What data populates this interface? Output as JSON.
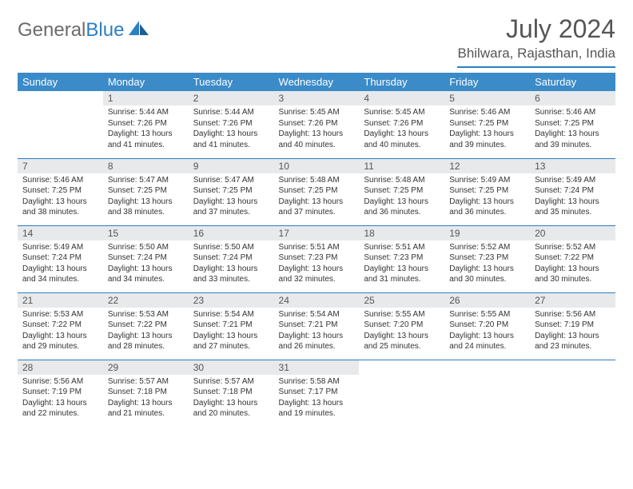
{
  "logo": {
    "textGray": "General",
    "textBlue": "Blue"
  },
  "title": {
    "month": "July 2024",
    "location": "Bhilwara, Rajasthan, India"
  },
  "weekdays": [
    "Sunday",
    "Monday",
    "Tuesday",
    "Wednesday",
    "Thursday",
    "Friday",
    "Saturday"
  ],
  "colors": {
    "headerBg": "#3b8bc9",
    "accent": "#2b7fc4",
    "dayNumBg": "#e8e9ea",
    "text": "#333333",
    "muted": "#555555"
  },
  "grid": {
    "startWeekday": 1,
    "daysInMonth": 31
  },
  "days": {
    "1": {
      "sunrise": "5:44 AM",
      "sunset": "7:26 PM",
      "daylight": "13 hours and 41 minutes."
    },
    "2": {
      "sunrise": "5:44 AM",
      "sunset": "7:26 PM",
      "daylight": "13 hours and 41 minutes."
    },
    "3": {
      "sunrise": "5:45 AM",
      "sunset": "7:26 PM",
      "daylight": "13 hours and 40 minutes."
    },
    "4": {
      "sunrise": "5:45 AM",
      "sunset": "7:26 PM",
      "daylight": "13 hours and 40 minutes."
    },
    "5": {
      "sunrise": "5:46 AM",
      "sunset": "7:25 PM",
      "daylight": "13 hours and 39 minutes."
    },
    "6": {
      "sunrise": "5:46 AM",
      "sunset": "7:25 PM",
      "daylight": "13 hours and 39 minutes."
    },
    "7": {
      "sunrise": "5:46 AM",
      "sunset": "7:25 PM",
      "daylight": "13 hours and 38 minutes."
    },
    "8": {
      "sunrise": "5:47 AM",
      "sunset": "7:25 PM",
      "daylight": "13 hours and 38 minutes."
    },
    "9": {
      "sunrise": "5:47 AM",
      "sunset": "7:25 PM",
      "daylight": "13 hours and 37 minutes."
    },
    "10": {
      "sunrise": "5:48 AM",
      "sunset": "7:25 PM",
      "daylight": "13 hours and 37 minutes."
    },
    "11": {
      "sunrise": "5:48 AM",
      "sunset": "7:25 PM",
      "daylight": "13 hours and 36 minutes."
    },
    "12": {
      "sunrise": "5:49 AM",
      "sunset": "7:25 PM",
      "daylight": "13 hours and 36 minutes."
    },
    "13": {
      "sunrise": "5:49 AM",
      "sunset": "7:24 PM",
      "daylight": "13 hours and 35 minutes."
    },
    "14": {
      "sunrise": "5:49 AM",
      "sunset": "7:24 PM",
      "daylight": "13 hours and 34 minutes."
    },
    "15": {
      "sunrise": "5:50 AM",
      "sunset": "7:24 PM",
      "daylight": "13 hours and 34 minutes."
    },
    "16": {
      "sunrise": "5:50 AM",
      "sunset": "7:24 PM",
      "daylight": "13 hours and 33 minutes."
    },
    "17": {
      "sunrise": "5:51 AM",
      "sunset": "7:23 PM",
      "daylight": "13 hours and 32 minutes."
    },
    "18": {
      "sunrise": "5:51 AM",
      "sunset": "7:23 PM",
      "daylight": "13 hours and 31 minutes."
    },
    "19": {
      "sunrise": "5:52 AM",
      "sunset": "7:23 PM",
      "daylight": "13 hours and 30 minutes."
    },
    "20": {
      "sunrise": "5:52 AM",
      "sunset": "7:22 PM",
      "daylight": "13 hours and 30 minutes."
    },
    "21": {
      "sunrise": "5:53 AM",
      "sunset": "7:22 PM",
      "daylight": "13 hours and 29 minutes."
    },
    "22": {
      "sunrise": "5:53 AM",
      "sunset": "7:22 PM",
      "daylight": "13 hours and 28 minutes."
    },
    "23": {
      "sunrise": "5:54 AM",
      "sunset": "7:21 PM",
      "daylight": "13 hours and 27 minutes."
    },
    "24": {
      "sunrise": "5:54 AM",
      "sunset": "7:21 PM",
      "daylight": "13 hours and 26 minutes."
    },
    "25": {
      "sunrise": "5:55 AM",
      "sunset": "7:20 PM",
      "daylight": "13 hours and 25 minutes."
    },
    "26": {
      "sunrise": "5:55 AM",
      "sunset": "7:20 PM",
      "daylight": "13 hours and 24 minutes."
    },
    "27": {
      "sunrise": "5:56 AM",
      "sunset": "7:19 PM",
      "daylight": "13 hours and 23 minutes."
    },
    "28": {
      "sunrise": "5:56 AM",
      "sunset": "7:19 PM",
      "daylight": "13 hours and 22 minutes."
    },
    "29": {
      "sunrise": "5:57 AM",
      "sunset": "7:18 PM",
      "daylight": "13 hours and 21 minutes."
    },
    "30": {
      "sunrise": "5:57 AM",
      "sunset": "7:18 PM",
      "daylight": "13 hours and 20 minutes."
    },
    "31": {
      "sunrise": "5:58 AM",
      "sunset": "7:17 PM",
      "daylight": "13 hours and 19 minutes."
    }
  },
  "labels": {
    "sunrise": "Sunrise:",
    "sunset": "Sunset:",
    "daylight": "Daylight:"
  }
}
